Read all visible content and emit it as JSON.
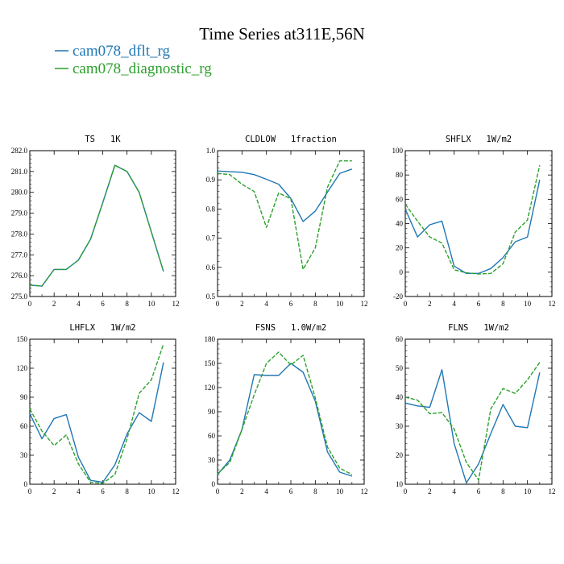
{
  "title": "Time Series at311E,56N",
  "colors": {
    "series1": "#2077b4",
    "series2": "#2ca02c",
    "axis": "#000000"
  },
  "legend": [
    {
      "name": "cam078_dflt_rg",
      "color": "#2077b4",
      "dashed": false
    },
    {
      "name": "cam078_diagnostic_rg",
      "color": "#2ca02c",
      "dashed": true
    }
  ],
  "chart_data": [
    {
      "type": "line",
      "title": "TS   1K",
      "x": [
        0,
        1,
        2,
        3,
        4,
        5,
        6,
        7,
        8,
        9,
        10,
        11
      ],
      "xlim": [
        0,
        12
      ],
      "xticks": [
        "0",
        "2",
        "4",
        "6",
        "8",
        "10",
        "12"
      ],
      "ylim": [
        275.0,
        282.0
      ],
      "yticks": [
        "275.0",
        "276.0",
        "277.0",
        "278.0",
        "279.0",
        "280.0",
        "281.0",
        "282.0"
      ],
      "series": [
        {
          "name": "cam078_dflt_rg",
          "values": [
            275.55,
            275.5,
            276.3,
            276.3,
            276.75,
            277.75,
            279.5,
            281.3,
            281.0,
            280.0,
            278.1,
            276.2
          ]
        },
        {
          "name": "cam078_diagnostic_rg",
          "values": [
            275.55,
            275.5,
            276.3,
            276.3,
            276.75,
            277.75,
            279.5,
            281.3,
            281.0,
            280.0,
            278.1,
            276.2
          ]
        }
      ]
    },
    {
      "type": "line",
      "title": "CLDLOW   1fraction",
      "x": [
        0,
        1,
        2,
        3,
        4,
        5,
        6,
        7,
        8,
        9,
        10,
        11
      ],
      "xlim": [
        0,
        12
      ],
      "xticks": [
        "0",
        "2",
        "4",
        "6",
        "8",
        "10",
        "12"
      ],
      "ylim": [
        0.5,
        1.0
      ],
      "yticks": [
        "0.5",
        "0.6",
        "0.7",
        "0.8",
        "0.9",
        "1.0"
      ],
      "series": [
        {
          "name": "cam078_dflt_rg",
          "values": [
            0.93,
            0.928,
            0.926,
            0.918,
            0.902,
            0.885,
            0.836,
            0.757,
            0.793,
            0.858,
            0.922,
            0.937
          ]
        },
        {
          "name": "cam078_diagnostic_rg",
          "values": [
            0.922,
            0.918,
            0.885,
            0.86,
            0.737,
            0.855,
            0.835,
            0.593,
            0.667,
            0.875,
            0.965,
            0.965
          ]
        }
      ]
    },
    {
      "type": "line",
      "title": "SHFLX   1W/m2",
      "x": [
        0,
        1,
        2,
        3,
        4,
        5,
        6,
        7,
        8,
        9,
        10,
        11
      ],
      "xlim": [
        0,
        12
      ],
      "xticks": [
        "0",
        "2",
        "4",
        "6",
        "8",
        "10",
        "12"
      ],
      "ylim": [
        -20,
        100
      ],
      "yticks": [
        "-20",
        "0",
        "20",
        "40",
        "60",
        "80",
        "100"
      ],
      "series": [
        {
          "name": "cam078_dflt_rg",
          "values": [
            52,
            29,
            39,
            42,
            5,
            -1,
            -1,
            3,
            12,
            25,
            29,
            76
          ]
        },
        {
          "name": "cam078_diagnostic_rg",
          "values": [
            56,
            42,
            29,
            24,
            2,
            -0.5,
            -1.5,
            -1,
            7,
            33,
            43,
            88
          ]
        }
      ]
    },
    {
      "type": "line",
      "title": "LHFLX   1W/m2",
      "x": [
        0,
        1,
        2,
        3,
        4,
        5,
        6,
        7,
        8,
        9,
        10,
        11
      ],
      "xlim": [
        0,
        12
      ],
      "xticks": [
        "0",
        "2",
        "4",
        "6",
        "8",
        "10",
        "12"
      ],
      "ylim": [
        0,
        150
      ],
      "yticks": [
        "0",
        "30",
        "60",
        "90",
        "120",
        "150"
      ],
      "series": [
        {
          "name": "cam078_dflt_rg",
          "values": [
            73,
            47,
            68,
            72,
            28,
            4,
            2,
            20,
            52,
            74,
            65,
            126
          ]
        },
        {
          "name": "cam078_diagnostic_rg",
          "values": [
            78,
            55,
            40,
            51,
            21,
            2,
            1,
            10,
            47,
            94,
            108,
            145
          ]
        }
      ]
    },
    {
      "type": "line",
      "title": "FSNS   1.0W/m2",
      "x": [
        0,
        1,
        2,
        3,
        4,
        5,
        6,
        7,
        8,
        9,
        10,
        11
      ],
      "xlim": [
        0,
        12
      ],
      "xticks": [
        "0",
        "2",
        "4",
        "6",
        "8",
        "10",
        "12"
      ],
      "ylim": [
        0,
        180
      ],
      "yticks": [
        "0",
        "30",
        "60",
        "90",
        "120",
        "150",
        "180"
      ],
      "series": [
        {
          "name": "cam078_dflt_rg",
          "values": [
            12,
            30,
            68,
            136,
            135,
            135,
            150,
            139,
            103,
            40,
            15,
            10
          ]
        },
        {
          "name": "cam078_diagnostic_rg",
          "values": [
            13,
            27,
            68,
            111,
            150,
            164,
            148,
            160,
            107,
            46,
            20,
            12
          ]
        }
      ]
    },
    {
      "type": "line",
      "title": "FLNS   1W/m2",
      "x": [
        0,
        1,
        2,
        3,
        4,
        5,
        6,
        7,
        8,
        9,
        10,
        11
      ],
      "xlim": [
        0,
        12
      ],
      "xticks": [
        "0",
        "2",
        "4",
        "6",
        "8",
        "10",
        "12"
      ],
      "ylim": [
        10,
        60
      ],
      "yticks": [
        "10",
        "20",
        "30",
        "40",
        "50",
        "60"
      ],
      "series": [
        {
          "name": "cam078_dflt_rg",
          "values": [
            38,
            37,
            36.5,
            49.5,
            24,
            10.5,
            17,
            27.5,
            37.5,
            30,
            29.5,
            48.5
          ]
        },
        {
          "name": "cam078_diagnostic_rg",
          "values": [
            40,
            39,
            34.3,
            34.7,
            29,
            17.5,
            11.5,
            36,
            43,
            41.3,
            46,
            52
          ]
        }
      ]
    }
  ]
}
